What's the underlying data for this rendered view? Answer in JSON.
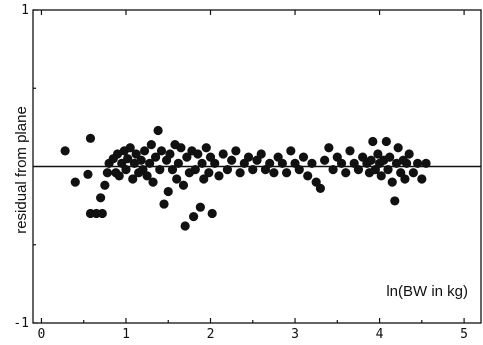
{
  "chart_data": {
    "type": "scatter",
    "ylabel": "residual from plane",
    "annotation": "ln(BW in kg)",
    "xlim": [
      -0.1,
      5.2
    ],
    "ylim": [
      -1,
      1
    ],
    "x_ticks": [
      "0",
      "1",
      "2",
      "3",
      "4",
      "5"
    ],
    "y_ticks": [
      "1",
      "-1"
    ],
    "reference_line_y": 0,
    "grid": false,
    "legend": "none",
    "series": [
      {
        "values": [
          [
            0.28,
            0.1
          ],
          [
            0.4,
            -0.1
          ],
          [
            0.55,
            -0.05
          ],
          [
            0.58,
            0.18
          ],
          [
            0.58,
            -0.3
          ],
          [
            0.65,
            -0.3
          ],
          [
            0.7,
            -0.2
          ],
          [
            0.72,
            -0.3
          ],
          [
            0.75,
            -0.12
          ],
          [
            0.78,
            -0.04
          ],
          [
            0.8,
            0.02
          ],
          [
            0.85,
            0.05
          ],
          [
            0.88,
            -0.04
          ],
          [
            0.9,
            0.08
          ],
          [
            0.92,
            -0.06
          ],
          [
            0.95,
            0.02
          ],
          [
            0.98,
            0.1
          ],
          [
            1.0,
            -0.02
          ],
          [
            1.02,
            0.05
          ],
          [
            1.05,
            0.12
          ],
          [
            1.08,
            -0.08
          ],
          [
            1.1,
            0.02
          ],
          [
            1.12,
            0.08
          ],
          [
            1.15,
            -0.04
          ],
          [
            1.18,
            0.04
          ],
          [
            1.2,
            -0.02
          ],
          [
            1.22,
            0.1
          ],
          [
            1.25,
            -0.06
          ],
          [
            1.28,
            0.02
          ],
          [
            1.3,
            0.14
          ],
          [
            1.32,
            -0.1
          ],
          [
            1.35,
            0.06
          ],
          [
            1.38,
            0.23
          ],
          [
            1.4,
            -0.02
          ],
          [
            1.42,
            0.1
          ],
          [
            1.45,
            -0.24
          ],
          [
            1.48,
            0.04
          ],
          [
            1.5,
            -0.16
          ],
          [
            1.52,
            0.08
          ],
          [
            1.55,
            -0.02
          ],
          [
            1.58,
            0.14
          ],
          [
            1.6,
            -0.08
          ],
          [
            1.62,
            0.02
          ],
          [
            1.65,
            0.12
          ],
          [
            1.68,
            -0.12
          ],
          [
            1.7,
            -0.38
          ],
          [
            1.72,
            0.06
          ],
          [
            1.75,
            -0.04
          ],
          [
            1.78,
            0.1
          ],
          [
            1.8,
            -0.32
          ],
          [
            1.82,
            -0.02
          ],
          [
            1.85,
            0.08
          ],
          [
            1.88,
            -0.26
          ],
          [
            1.9,
            0.02
          ],
          [
            1.92,
            -0.08
          ],
          [
            1.95,
            0.12
          ],
          [
            1.98,
            -0.04
          ],
          [
            2.0,
            0.06
          ],
          [
            2.02,
            -0.3
          ],
          [
            2.05,
            0.02
          ],
          [
            2.1,
            -0.06
          ],
          [
            2.15,
            0.08
          ],
          [
            2.2,
            -0.02
          ],
          [
            2.25,
            0.04
          ],
          [
            2.3,
            0.1
          ],
          [
            2.35,
            -0.04
          ],
          [
            2.4,
            0.02
          ],
          [
            2.45,
            0.06
          ],
          [
            2.5,
            -0.02
          ],
          [
            2.55,
            0.04
          ],
          [
            2.6,
            0.08
          ],
          [
            2.65,
            -0.02
          ],
          [
            2.7,
            0.02
          ],
          [
            2.75,
            -0.04
          ],
          [
            2.8,
            0.06
          ],
          [
            2.85,
            0.02
          ],
          [
            2.9,
            -0.04
          ],
          [
            2.95,
            0.1
          ],
          [
            3.0,
            0.02
          ],
          [
            3.05,
            -0.02
          ],
          [
            3.1,
            0.06
          ],
          [
            3.15,
            -0.06
          ],
          [
            3.2,
            0.02
          ],
          [
            3.25,
            -0.1
          ],
          [
            3.3,
            -0.14
          ],
          [
            3.35,
            0.04
          ],
          [
            3.4,
            0.12
          ],
          [
            3.45,
            -0.02
          ],
          [
            3.5,
            0.06
          ],
          [
            3.55,
            0.02
          ],
          [
            3.6,
            -0.04
          ],
          [
            3.65,
            0.1
          ],
          [
            3.7,
            0.02
          ],
          [
            3.75,
            -0.02
          ],
          [
            3.8,
            0.06
          ],
          [
            3.85,
            0.02
          ],
          [
            3.88,
            -0.04
          ],
          [
            3.9,
            0.04
          ],
          [
            3.92,
            0.16
          ],
          [
            3.95,
            -0.02
          ],
          [
            3.98,
            0.08
          ],
          [
            4.0,
            0.02
          ],
          [
            4.02,
            -0.06
          ],
          [
            4.05,
            0.04
          ],
          [
            4.08,
            0.16
          ],
          [
            4.1,
            -0.02
          ],
          [
            4.12,
            0.06
          ],
          [
            4.15,
            -0.1
          ],
          [
            4.18,
            -0.22
          ],
          [
            4.2,
            0.02
          ],
          [
            4.22,
            0.12
          ],
          [
            4.25,
            -0.04
          ],
          [
            4.28,
            0.04
          ],
          [
            4.3,
            -0.08
          ],
          [
            4.32,
            0.02
          ],
          [
            4.35,
            0.08
          ],
          [
            4.4,
            -0.04
          ],
          [
            4.45,
            0.02
          ],
          [
            4.5,
            -0.08
          ],
          [
            4.55,
            0.02
          ]
        ]
      }
    ]
  },
  "styles": {
    "ink_color": "#111111",
    "background_color": "#ffffff"
  }
}
